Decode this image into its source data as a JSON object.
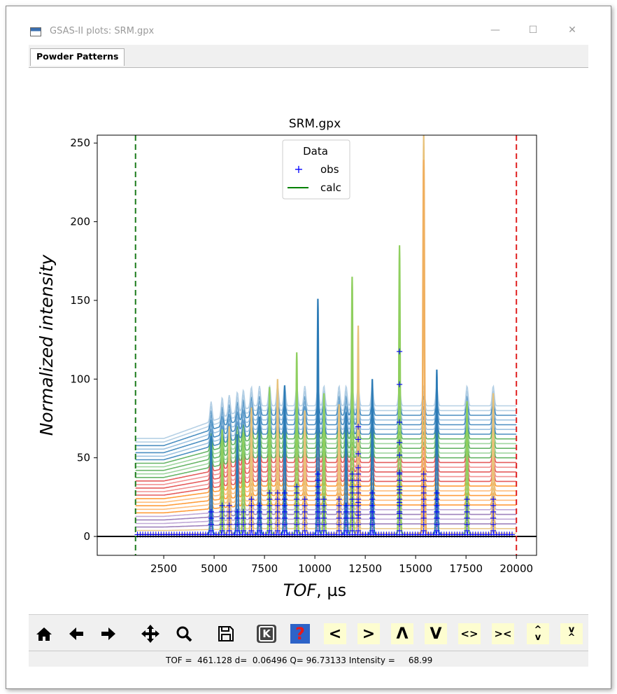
{
  "window": {
    "title": "GSAS-II plots: SRM.gpx",
    "minimize": "—",
    "maximize": "☐",
    "close": "✕"
  },
  "tabs": [
    {
      "label": "Powder Patterns"
    }
  ],
  "plot": {
    "title": "SRM.gpx",
    "xlabel_italic": "TOF",
    "xlabel_unit": ", µs",
    "ylabel": "Normalized intensity",
    "xlim": [
      -800,
      21000
    ],
    "ylim": [
      -12,
      255
    ],
    "x_ticks": [
      "2500",
      "5000",
      "7500",
      "10000",
      "12500",
      "15000",
      "17500",
      "20000"
    ],
    "x_tick_values": [
      2500,
      5000,
      7500,
      10000,
      12500,
      15000,
      17500,
      20000
    ],
    "y_ticks": [
      "0",
      "50",
      "100",
      "150",
      "200",
      "250"
    ],
    "y_tick_values": [
      0,
      50,
      100,
      150,
      200,
      250
    ],
    "legend": {
      "title": "Data",
      "obs": "obs",
      "calc": "calc",
      "placement": "upper center"
    },
    "limit_lines": {
      "low": 1100,
      "high": 20000,
      "low_color": "#1a7a1a",
      "high_color": "#e02020"
    }
  },
  "chart_data": {
    "type": "line",
    "title": "SRM.gpx",
    "xlabel": "TOF, µs",
    "ylabel": "Normalized intensity",
    "xlim": [
      -800,
      21000
    ],
    "ylim": [
      -12,
      255
    ],
    "grid": false,
    "legend": "upper center",
    "series": [
      {
        "name": "obs",
        "marker": "+",
        "color": "#0000ff"
      },
      {
        "name": "calc",
        "color": "#008000"
      }
    ],
    "peaks": [
      {
        "x": 4850,
        "y": 64
      },
      {
        "x": 5400,
        "y": 68
      },
      {
        "x": 5750,
        "y": 70
      },
      {
        "x": 6150,
        "y": 65
      },
      {
        "x": 6450,
        "y": 66
      },
      {
        "x": 6850,
        "y": 82
      },
      {
        "x": 7250,
        "y": 76
      },
      {
        "x": 7750,
        "y": 95
      },
      {
        "x": 8150,
        "y": 100
      },
      {
        "x": 8500,
        "y": 96
      },
      {
        "x": 9100,
        "y": 117
      },
      {
        "x": 9500,
        "y": 80
      },
      {
        "x": 10150,
        "y": 151
      },
      {
        "x": 10450,
        "y": 91
      },
      {
        "x": 11200,
        "y": 84
      },
      {
        "x": 11550,
        "y": 79
      },
      {
        "x": 11850,
        "y": 165
      },
      {
        "x": 12150,
        "y": 134
      },
      {
        "x": 12850,
        "y": 100
      },
      {
        "x": 14200,
        "y": 185
      },
      {
        "x": 15400,
        "y": 255
      },
      {
        "x": 16050,
        "y": 106
      },
      {
        "x": 17550,
        "y": 86
      },
      {
        "x": 18850,
        "y": 91
      }
    ],
    "baseline_levels": [
      2,
      5,
      8,
      11,
      14,
      17,
      20,
      23,
      26,
      29,
      32,
      35,
      38,
      41,
      44,
      47,
      50,
      53,
      56,
      59,
      62,
      65,
      68,
      71,
      74,
      77,
      80,
      83
    ],
    "baseline_colors": [
      "#e8c27a",
      "#e8c27a",
      "#8e6cb0",
      "#b59ad0",
      "#8e6cb0",
      "#b59ad0",
      "#ff8c1a",
      "#ffb366",
      "#ff8c1a",
      "#ffb366",
      "#ff8c1a",
      "#e04040",
      "#f08080",
      "#e04040",
      "#f08080",
      "#e04040",
      "#4ca84c",
      "#8fcf8f",
      "#4ca84c",
      "#8fcf8f",
      "#4ca84c",
      "#2c7bb6",
      "#8db8dc",
      "#2c7bb6",
      "#8db8dc",
      "#2c7bb6",
      "#a8c8e0",
      "#a8c8e0"
    ]
  },
  "toolbar": {
    "home": "home-icon",
    "back": "back-arrow-icon",
    "forward": "forward-arrow-icon",
    "pan": "pan-icon",
    "zoom": "zoom-icon",
    "save": "save-icon",
    "key": "K",
    "help": "?",
    "prev": "<",
    "next": ">",
    "up": "Λ",
    "down": "V",
    "expand": "<>",
    "shrink": "><",
    "vexpand": "^\nv",
    "vshrink": "v\n^"
  },
  "status": {
    "text": "TOF =  461.128 d=  0.06496 Q= 96.73133 Intensity =     68.99"
  }
}
